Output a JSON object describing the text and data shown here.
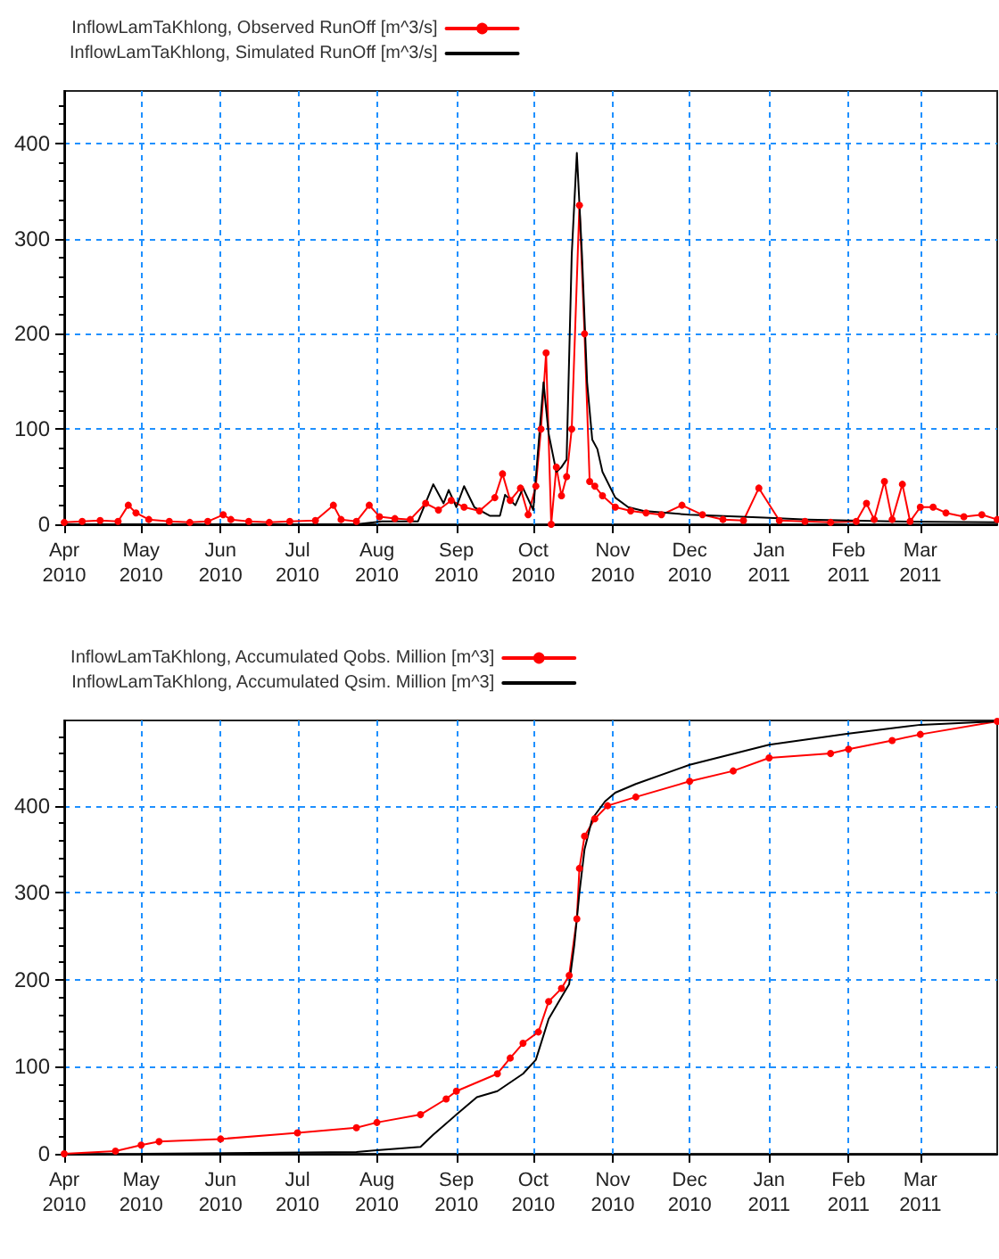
{
  "chart_data": [
    {
      "type": "line",
      "legend": "top left",
      "grid": true,
      "xlim": [
        "2010-04-01",
        "2011-03-31"
      ],
      "xticks": [
        {
          "value": "2010-04-01",
          "label": "Apr\n2010"
        },
        {
          "value": "2010-05-01",
          "label": "May\n2010"
        },
        {
          "value": "2010-06-01",
          "label": "Jun\n2010"
        },
        {
          "value": "2010-07-01",
          "label": "Jul\n2010"
        },
        {
          "value": "2010-08-01",
          "label": "Aug\n2010"
        },
        {
          "value": "2010-09-01",
          "label": "Sep\n2010"
        },
        {
          "value": "2010-10-01",
          "label": "Oct\n2010"
        },
        {
          "value": "2010-11-01",
          "label": "Nov\n2010"
        },
        {
          "value": "2010-12-01",
          "label": "Dec\n2010"
        },
        {
          "value": "2011-01-01",
          "label": "Jan\n2011"
        },
        {
          "value": "2011-02-01",
          "label": "Feb\n2011"
        },
        {
          "value": "2011-03-01",
          "label": "Mar\n2011"
        }
      ],
      "ylim": [
        0,
        455
      ],
      "yticks": [
        0,
        100,
        200,
        300,
        400
      ],
      "series": [
        {
          "name": "InflowLamTaKhlong, Observed RunOff [m^3/s]",
          "color": "#ff0000",
          "marker": "circle",
          "line_style": "solid",
          "x": [
            "2010-04-01",
            "2010-04-08",
            "2010-04-15",
            "2010-04-22",
            "2010-04-26",
            "2010-04-29",
            "2010-05-04",
            "2010-05-12",
            "2010-05-20",
            "2010-05-27",
            "2010-06-02",
            "2010-06-05",
            "2010-06-12",
            "2010-06-20",
            "2010-06-28",
            "2010-07-08",
            "2010-07-15",
            "2010-07-18",
            "2010-07-24",
            "2010-07-29",
            "2010-08-02",
            "2010-08-08",
            "2010-08-14",
            "2010-08-20",
            "2010-08-25",
            "2010-08-30",
            "2010-09-04",
            "2010-09-10",
            "2010-09-16",
            "2010-09-19",
            "2010-09-22",
            "2010-09-26",
            "2010-09-29",
            "2010-10-02",
            "2010-10-04",
            "2010-10-06",
            "2010-10-08",
            "2010-10-10",
            "2010-10-12",
            "2010-10-14",
            "2010-10-16",
            "2010-10-19",
            "2010-10-21",
            "2010-10-23",
            "2010-10-25",
            "2010-10-28",
            "2010-11-02",
            "2010-11-08",
            "2010-11-14",
            "2010-11-20",
            "2010-11-28",
            "2010-12-06",
            "2010-12-14",
            "2010-12-22",
            "2010-12-28",
            "2011-01-05",
            "2011-01-15",
            "2011-01-25",
            "2011-02-04",
            "2011-02-08",
            "2011-02-11",
            "2011-02-15",
            "2011-02-18",
            "2011-02-22",
            "2011-02-25",
            "2011-03-01",
            "2011-03-06",
            "2011-03-11",
            "2011-03-18",
            "2011-03-25",
            "2011-03-31"
          ],
          "values": [
            2,
            3,
            4,
            3,
            20,
            12,
            5,
            3,
            2,
            3,
            10,
            5,
            3,
            2,
            3,
            4,
            20,
            5,
            3,
            20,
            8,
            6,
            5,
            22,
            15,
            25,
            18,
            14,
            28,
            53,
            25,
            38,
            10,
            40,
            100,
            180,
            0,
            60,
            30,
            50,
            100,
            335,
            200,
            45,
            40,
            30,
            18,
            14,
            12,
            10,
            20,
            10,
            5,
            4,
            38,
            4,
            3,
            2,
            3,
            22,
            5,
            45,
            5,
            42,
            3,
            18,
            18,
            12,
            8,
            10,
            5
          ]
        },
        {
          "name": "InflowLamTaKhlong, Simulated RunOff [m^3/s]",
          "color": "#000000",
          "marker": "none",
          "line_style": "solid",
          "x": [
            "2010-04-01",
            "2010-07-24",
            "2010-08-03",
            "2010-08-17",
            "2010-08-23",
            "2010-08-27",
            "2010-08-29",
            "2010-09-01",
            "2010-09-04",
            "2010-09-08",
            "2010-09-14",
            "2010-09-18",
            "2010-09-20",
            "2010-09-24",
            "2010-09-27",
            "2010-10-01",
            "2010-10-05",
            "2010-10-07",
            "2010-10-10",
            "2010-10-12",
            "2010-10-14",
            "2010-10-16",
            "2010-10-18",
            "2010-10-20",
            "2010-10-22",
            "2010-10-24",
            "2010-10-26",
            "2010-10-28",
            "2010-11-02",
            "2010-11-07",
            "2010-11-13",
            "2010-12-01",
            "2010-12-30",
            "2011-01-16",
            "2011-02-18",
            "2011-03-31"
          ],
          "values": [
            0,
            0,
            3,
            3,
            42,
            22,
            36,
            18,
            40,
            18,
            9,
            9,
            31,
            20,
            38,
            15,
            149,
            95,
            55,
            60,
            68,
            283,
            390,
            283,
            149,
            89,
            79,
            55,
            28,
            18,
            14,
            10,
            7,
            5,
            3,
            2
          ]
        }
      ]
    },
    {
      "type": "line",
      "legend": "top left",
      "grid": true,
      "xlim": [
        "2010-04-01",
        "2011-03-31"
      ],
      "xticks": [
        {
          "value": "2010-04-01",
          "label": "Apr\n2010"
        },
        {
          "value": "2010-05-01",
          "label": "May\n2010"
        },
        {
          "value": "2010-06-01",
          "label": "Jun\n2010"
        },
        {
          "value": "2010-07-01",
          "label": "Jul\n2010"
        },
        {
          "value": "2010-08-01",
          "label": "Aug\n2010"
        },
        {
          "value": "2010-09-01",
          "label": "Sep\n2010"
        },
        {
          "value": "2010-10-01",
          "label": "Oct\n2010"
        },
        {
          "value": "2010-11-01",
          "label": "Nov\n2010"
        },
        {
          "value": "2010-12-01",
          "label": "Dec\n2010"
        },
        {
          "value": "2011-01-01",
          "label": "Jan\n2011"
        },
        {
          "value": "2011-02-01",
          "label": "Feb\n2011"
        },
        {
          "value": "2011-03-01",
          "label": "Mar\n2011"
        }
      ],
      "ylim": [
        0,
        498
      ],
      "yticks": [
        0,
        100,
        200,
        300,
        400
      ],
      "series": [
        {
          "name": "InflowLamTaKhlong, Accumulated Qobs. Million [m^3]",
          "color": "#ff0000",
          "marker": "circle",
          "line_style": "solid",
          "x": [
            "2010-04-01",
            "2010-04-21",
            "2010-05-01",
            "2010-05-08",
            "2010-06-01",
            "2010-07-01",
            "2010-07-24",
            "2010-08-01",
            "2010-08-18",
            "2010-08-28",
            "2010-09-01",
            "2010-09-17",
            "2010-09-22",
            "2010-09-27",
            "2010-10-03",
            "2010-10-07",
            "2010-10-12",
            "2010-10-15",
            "2010-10-18",
            "2010-10-19",
            "2010-10-21",
            "2010-10-25",
            "2010-10-30",
            "2010-11-10",
            "2010-12-01",
            "2010-12-18",
            "2011-01-01",
            "2011-01-25",
            "2011-02-01",
            "2011-02-18",
            "2011-03-01",
            "2011-03-31"
          ],
          "values": [
            0,
            3,
            10,
            14,
            17,
            24,
            30,
            36,
            45,
            63,
            72,
            92,
            110,
            127,
            140,
            175,
            190,
            205,
            270,
            328,
            365,
            385,
            400,
            410,
            428,
            440,
            455,
            460,
            465,
            475,
            482,
            497
          ]
        },
        {
          "name": "InflowLamTaKhlong, Accumulated Qsim. Million [m^3]",
          "color": "#000000",
          "marker": "none",
          "line_style": "solid",
          "x": [
            "2010-05-01",
            "2010-07-24",
            "2010-08-01",
            "2010-08-18",
            "2010-08-23",
            "2010-09-01",
            "2010-09-09",
            "2010-09-17",
            "2010-09-22",
            "2010-09-27",
            "2010-10-02",
            "2010-10-07",
            "2010-10-12",
            "2010-10-15",
            "2010-10-17",
            "2010-10-19",
            "2010-10-21",
            "2010-10-24",
            "2010-10-29",
            "2010-11-02",
            "2010-11-10",
            "2010-12-01",
            "2011-01-01",
            "2011-02-01",
            "2011-03-01",
            "2011-03-31"
          ],
          "values": [
            0,
            2,
            4,
            8,
            22,
            45,
            65,
            72,
            82,
            92,
            108,
            155,
            180,
            195,
            240,
            300,
            350,
            385,
            405,
            415,
            425,
            447,
            470,
            483,
            493,
            497
          ]
        }
      ]
    }
  ]
}
